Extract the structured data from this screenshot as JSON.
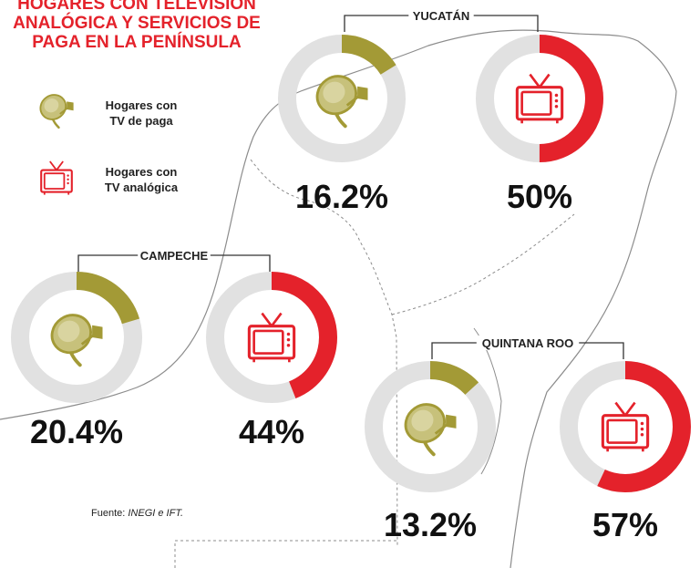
{
  "title": {
    "line1": "HOGARES CON TELEVISIÓN",
    "line2": "ANALÓGICA Y SERVICIOS DE",
    "line3": "PAGA EN LA PENÍNSULA"
  },
  "legend": [
    {
      "icon": "satellite-dish-icon",
      "line1": "Hogares con",
      "line2": "TV de paga",
      "color": "#a39a36"
    },
    {
      "icon": "television-icon",
      "line1": "Hogares con",
      "line2": "TV analógica",
      "color": "#e4222b"
    }
  ],
  "source": {
    "prefix": "Fuente: ",
    "value": "INEGI e IFT."
  },
  "colors": {
    "pay": "#a39a36",
    "analog": "#e4222b",
    "ring": "#e1e1e1",
    "map": "#8c8c8c"
  },
  "chart_data": {
    "type": "pie",
    "categories": [
      "Hogares con TV de paga",
      "Hogares con TV analógica"
    ],
    "states": [
      {
        "name": "YUCATÁN",
        "pay_tv": 16.2,
        "analog_tv": 50,
        "pay_label": "16.2%",
        "analog_label": "50%"
      },
      {
        "name": "CAMPECHE",
        "pay_tv": 20.4,
        "analog_tv": 44,
        "pay_label": "20.4%",
        "analog_label": "44%"
      },
      {
        "name": "QUINTANA ROO",
        "pay_tv": 13.2,
        "analog_tv": 57,
        "pay_label": "13.2%",
        "analog_label": "57%"
      }
    ]
  }
}
